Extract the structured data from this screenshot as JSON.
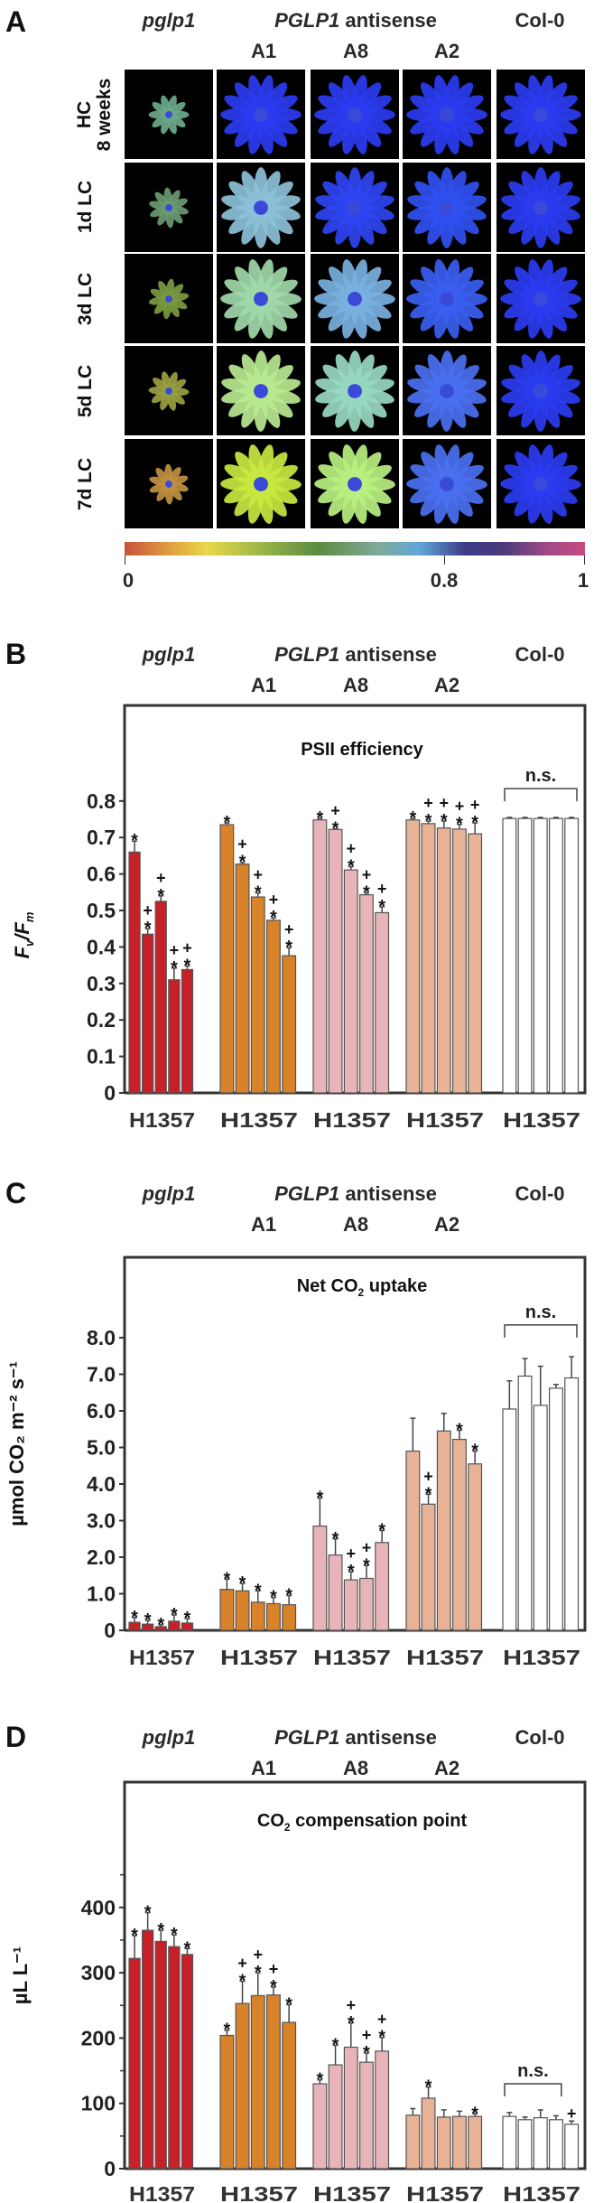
{
  "headers": {
    "mutant": "pglp1",
    "antisense_gene": "PGLP1",
    "antisense_word": " antisense",
    "wildtype": "Col-0",
    "lines": [
      "A1",
      "A8",
      "A2"
    ]
  },
  "panel_a": {
    "letter": "A",
    "row_labels": [
      [
        "HC",
        "8 weeks"
      ],
      [
        "1d LC"
      ],
      [
        "3d LC"
      ],
      [
        "5d LC"
      ],
      [
        "7d LC"
      ]
    ],
    "cell_colors": [
      [
        "#6aa88a",
        "#2a3cf0",
        "#2a3cf0",
        "#2a3cf0",
        "#2a3cf0"
      ],
      [
        "#6a9a70",
        "#8cc0d8",
        "#2e44f0",
        "#3050f0",
        "#2a3cf0"
      ],
      [
        "#7a9a40",
        "#a0d8a8",
        "#7ab0e0",
        "#3a5ef0",
        "#2a3cf0"
      ],
      [
        "#9aa040",
        "#b8e890",
        "#98d8c0",
        "#4a70f0",
        "#2a3cf0"
      ],
      [
        "#c09040",
        "#c8e840",
        "#b8f080",
        "#4a70f0",
        "#2a3cf0"
      ]
    ],
    "colorbar": {
      "ticks": [
        "0",
        "0.8",
        "1"
      ]
    }
  },
  "chart_data": [
    {
      "panel": "B",
      "type": "bar",
      "title_parts": [
        "PSII efficiency",
        "",
        ""
      ],
      "ylabel_parts": [
        "F",
        "v",
        "/F",
        "m"
      ],
      "groups": [
        "pglp1",
        "A1",
        "A8",
        "A2",
        "Col-0"
      ],
      "categories": [
        "H",
        "1",
        "3",
        "5",
        "7"
      ],
      "xtick_label": "H1357",
      "ylim": [
        0,
        0.8
      ],
      "yticks": [
        "0",
        "0.1",
        "0.2",
        "0.3",
        "0.4",
        "0.5",
        "0.6",
        "0.7",
        "0.8"
      ],
      "ytick_values": [
        0,
        0.1,
        0.2,
        0.3,
        0.4,
        0.5,
        0.6,
        0.7,
        0.8
      ],
      "minor_ticks": [],
      "colors": [
        "#c62128",
        "#d8822a",
        "#e8b4b8",
        "#e8b296",
        "#ffffff"
      ],
      "series": [
        {
          "name": "pglp1",
          "values": [
            0.66,
            0.435,
            0.525,
            0.31,
            0.338
          ],
          "err_top": [
            0.69,
            0.45,
            0.54,
            0.342,
            0.348
          ],
          "marks": [
            "*",
            "+*",
            "+*",
            "+*",
            "+*"
          ]
        },
        {
          "name": "A1",
          "values": [
            0.735,
            0.627,
            0.537,
            0.473,
            0.376
          ],
          "err_top": [
            0.74,
            0.632,
            0.548,
            0.48,
            0.398
          ],
          "marks": [
            "*",
            "+*",
            "+*",
            "+*",
            "+*"
          ]
        },
        {
          "name": "A8",
          "values": [
            0.748,
            0.722,
            0.611,
            0.543,
            0.494
          ],
          "err_top": [
            0.752,
            0.724,
            0.62,
            0.548,
            0.51
          ],
          "marks": [
            "*",
            "+*",
            "+*",
            "+*",
            "+*"
          ]
        },
        {
          "name": "A2",
          "values": [
            0.748,
            0.738,
            0.726,
            0.723,
            0.71
          ],
          "err_top": [
            0.752,
            0.745,
            0.745,
            0.736,
            0.74
          ],
          "marks": [
            "*",
            "+*",
            "+*",
            "+*",
            "+*"
          ]
        },
        {
          "name": "Col-0",
          "values": [
            0.752,
            0.752,
            0.752,
            0.752,
            0.752
          ],
          "err_top": [
            0.755,
            0.755,
            0.755,
            0.755,
            0.755
          ],
          "marks": [
            "",
            "",
            "",
            "",
            ""
          ]
        }
      ],
      "ns": {
        "label": "n.s.",
        "level": 0.834,
        "group": 4,
        "from": 0,
        "to": 4
      }
    },
    {
      "panel": "C",
      "type": "bar",
      "title_parts": [
        "Net CO",
        "2",
        " uptake"
      ],
      "ylabel_parts": [
        "µmol CO₂ m⁻² s⁻¹"
      ],
      "groups": [
        "pglp1",
        "A1",
        "A8",
        "A2",
        "Col-0"
      ],
      "categories": [
        "H",
        "1",
        "3",
        "5",
        "7"
      ],
      "xtick_label": "H1357",
      "ylim": [
        0,
        8
      ],
      "yticks": [
        "0",
        "1.0",
        "2.0",
        "3.0",
        "4.0",
        "5.0",
        "6.0",
        "7.0",
        "8.0"
      ],
      "ytick_values": [
        0,
        1,
        2,
        3,
        4,
        5,
        6,
        7,
        8
      ],
      "minor_ticks": [],
      "colors": [
        "#c62128",
        "#d8822a",
        "#e8b4b8",
        "#e8b296",
        "#ffffff"
      ],
      "series": [
        {
          "name": "pglp1",
          "values": [
            0.22,
            0.17,
            0.1,
            0.25,
            0.2
          ],
          "err_top": [
            0.35,
            0.27,
            0.15,
            0.42,
            0.32
          ],
          "marks": [
            "*",
            "*",
            "*",
            "*",
            "*"
          ]
        },
        {
          "name": "A1",
          "values": [
            1.12,
            1.08,
            0.77,
            0.73,
            0.7
          ],
          "err_top": [
            1.4,
            1.28,
            1.08,
            0.9,
            0.95
          ],
          "marks": [
            "*",
            "*",
            "*",
            "*",
            "*"
          ]
        },
        {
          "name": "A8",
          "values": [
            2.85,
            2.06,
            1.38,
            1.42,
            2.4
          ],
          "err_top": [
            3.62,
            2.5,
            1.6,
            1.77,
            2.73
          ],
          "marks": [
            "*",
            "*",
            "+*",
            "+*",
            "*"
          ]
        },
        {
          "name": "A2",
          "values": [
            4.9,
            3.45,
            5.45,
            5.22,
            4.55
          ],
          "err_top": [
            5.8,
            3.72,
            5.93,
            5.47,
            4.9
          ],
          "marks": [
            "",
            "+*",
            "",
            "*",
            "*"
          ]
        },
        {
          "name": "Col-0",
          "values": [
            6.05,
            6.95,
            6.15,
            6.62,
            6.9
          ],
          "err_top": [
            6.82,
            7.43,
            7.22,
            6.72,
            7.48
          ],
          "marks": [
            "",
            "",
            "",
            "",
            ""
          ]
        }
      ],
      "ns": {
        "label": "n.s.",
        "level": 8.35,
        "group": 4,
        "from": 0,
        "to": 4
      }
    },
    {
      "panel": "D",
      "type": "bar",
      "title_parts": [
        "CO",
        "2",
        " compensation point"
      ],
      "ylabel_parts": [
        "µL L⁻¹"
      ],
      "groups": [
        "pglp1",
        "A1",
        "A8",
        "A2",
        "Col-0"
      ],
      "categories": [
        "H",
        "1",
        "3",
        "5",
        "7"
      ],
      "xtick_label": "H1357",
      "ylim": [
        0,
        450
      ],
      "yticks": [
        "0",
        "100",
        "200",
        "300",
        "400"
      ],
      "ytick_values": [
        0,
        100,
        200,
        300,
        400
      ],
      "minor_ticks": [
        50,
        150,
        250,
        350,
        450
      ],
      "colors": [
        "#c62128",
        "#d8822a",
        "#e8b4b8",
        "#e8b296",
        "#ffffff"
      ],
      "series": [
        {
          "name": "pglp1",
          "values": [
            322,
            365,
            348,
            340,
            328
          ],
          "err_top": [
            357,
            392,
            365,
            358,
            337
          ],
          "marks": [
            "*",
            "*",
            "*",
            "*",
            "*"
          ]
        },
        {
          "name": "A1",
          "values": [
            204,
            253,
            265,
            266,
            224
          ],
          "err_top": [
            212,
            287,
            300,
            278,
            251
          ],
          "marks": [
            "*",
            "+*",
            "+*",
            "+*",
            "*"
          ]
        },
        {
          "name": "A8",
          "values": [
            130,
            159,
            186,
            163,
            180
          ],
          "err_top": [
            136,
            189,
            223,
            177,
            201
          ],
          "marks": [
            "*",
            "*",
            "+*",
            "+*",
            "+*"
          ]
        },
        {
          "name": "A2",
          "values": [
            82,
            108,
            79,
            80,
            80
          ],
          "err_top": [
            92,
            125,
            90,
            88,
            84
          ],
          "marks": [
            "",
            "*",
            "",
            "",
            "*"
          ]
        },
        {
          "name": "Col-0",
          "values": [
            80,
            75,
            78,
            75,
            68
          ],
          "err_top": [
            86,
            79,
            90,
            81,
            73
          ],
          "marks": [
            "",
            "",
            "",
            "",
            "+"
          ]
        }
      ],
      "ns": {
        "label": "n.s.",
        "level": 130,
        "group": 4,
        "from": 0,
        "to": 3
      }
    }
  ],
  "panel_letters": [
    "B",
    "C",
    "D"
  ]
}
